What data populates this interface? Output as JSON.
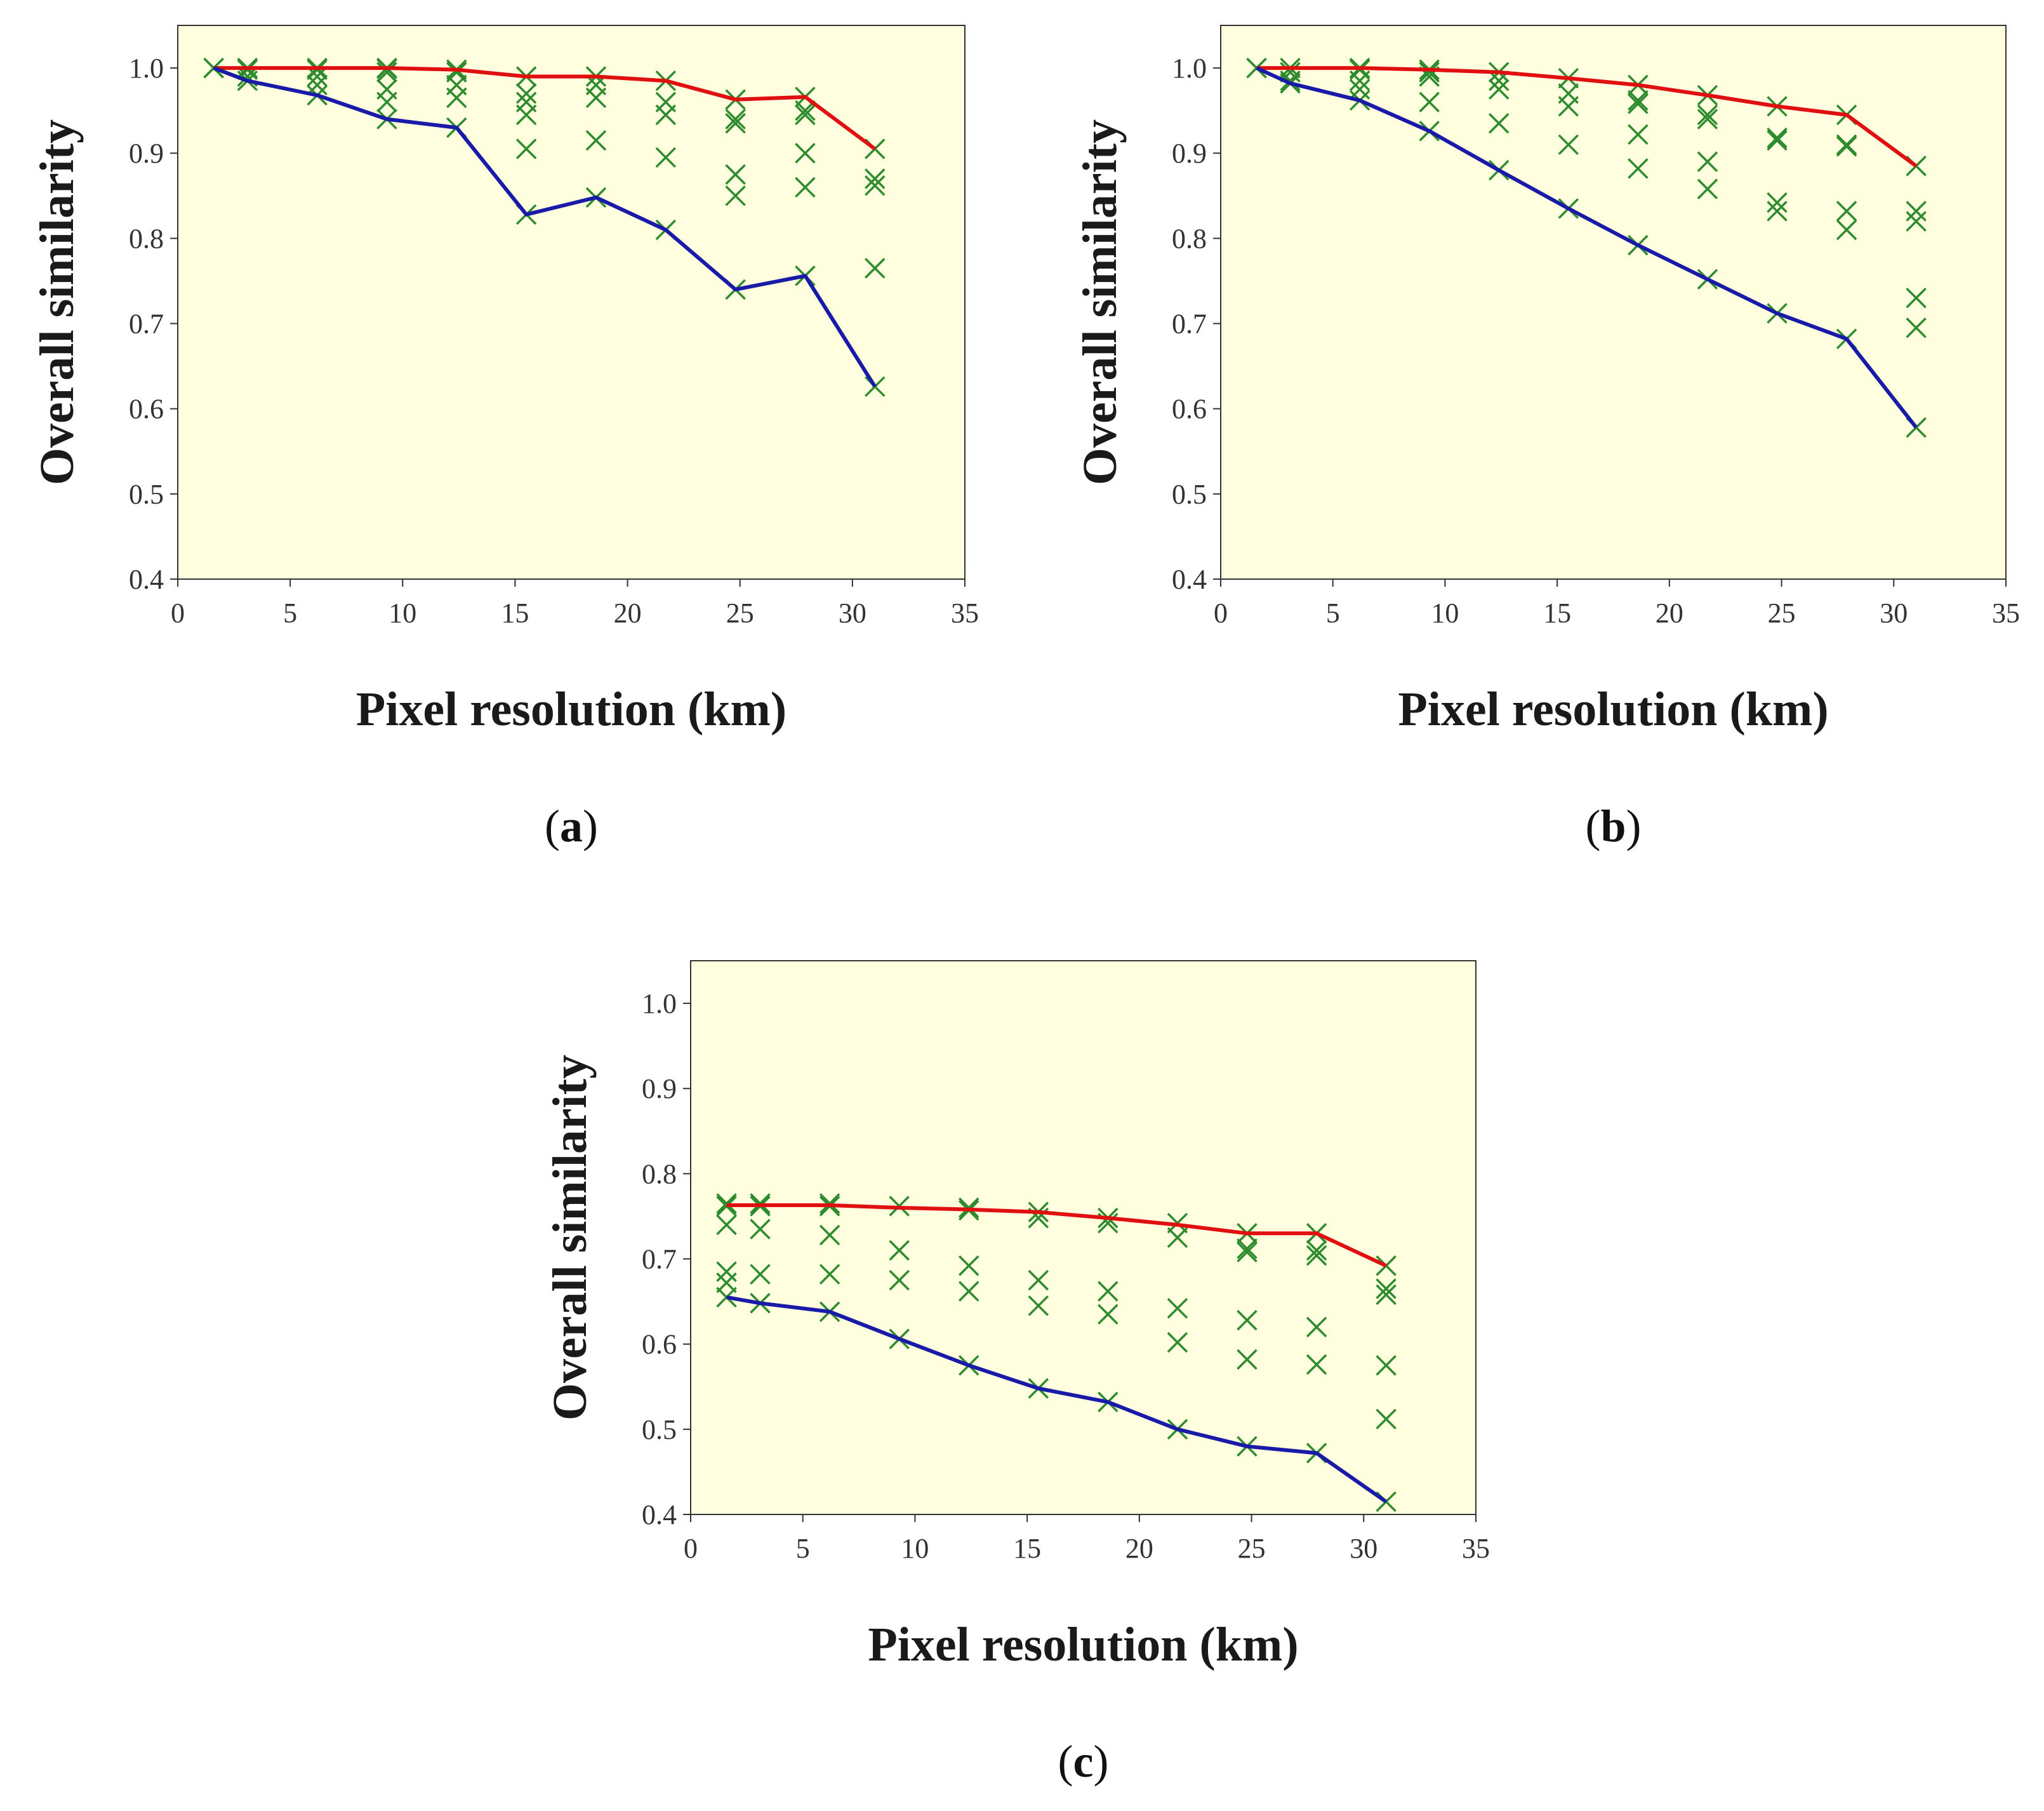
{
  "figure_colors": {
    "plot_background": "#ffffe0",
    "upper_line": "#e01010",
    "lower_line": "#1a1aa8",
    "markers": "#2e8b2e",
    "axis": "#333333"
  },
  "chart_data": [
    {
      "type": "line",
      "panel": "a",
      "panel_label": {
        "open": "(",
        "letter": "a",
        "close": ")"
      },
      "title": "",
      "xlabel": "Pixel resolution (km)",
      "ylabel": "Overall similarity",
      "xlim": [
        0,
        35
      ],
      "ylim": [
        0.4,
        1.05
      ],
      "xticks": [
        0,
        5,
        10,
        15,
        20,
        25,
        30,
        35
      ],
      "yticks": [
        "0.4",
        "0.5",
        "0.6",
        "0.7",
        "0.8",
        "0.9",
        "1.0"
      ],
      "x": [
        1.6,
        3.1,
        6.2,
        9.3,
        12.4,
        15.5,
        18.6,
        21.7,
        24.8,
        27.9,
        31.0
      ],
      "series": [
        {
          "name": "upper envelope",
          "color": "red",
          "values": [
            1.0,
            1.0,
            1.0,
            1.0,
            0.998,
            0.99,
            0.99,
            0.985,
            0.963,
            0.966,
            0.905
          ]
        },
        {
          "name": "lower envelope",
          "color": "blue",
          "values": [
            1.0,
            0.985,
            0.968,
            0.94,
            0.93,
            0.828,
            0.848,
            0.81,
            0.74,
            0.756,
            0.626
          ]
        }
      ],
      "scatter": [
        [
          1.0,
          1.0
        ],
        [
          1.0,
          0.998,
          0.99,
          0.985
        ],
        [
          1.0,
          0.998,
          0.99,
          0.98,
          0.968
        ],
        [
          1.0,
          0.999,
          0.995,
          0.975,
          0.96,
          0.94
        ],
        [
          0.998,
          0.995,
          0.98,
          0.965,
          0.93
        ],
        [
          0.99,
          0.97,
          0.96,
          0.945,
          0.905,
          0.828
        ],
        [
          0.99,
          0.98,
          0.965,
          0.915,
          0.848
        ],
        [
          0.985,
          0.96,
          0.945,
          0.895,
          0.81
        ],
        [
          0.963,
          0.94,
          0.935,
          0.875,
          0.85,
          0.74
        ],
        [
          0.966,
          0.95,
          0.945,
          0.9,
          0.86,
          0.756
        ],
        [
          0.905,
          0.87,
          0.862,
          0.765,
          0.626
        ]
      ]
    },
    {
      "type": "line",
      "panel": "b",
      "panel_label": {
        "open": "(",
        "letter": "b",
        "close": ")"
      },
      "title": "",
      "xlabel": "Pixel resolution (km)",
      "ylabel": "Overall similarity",
      "xlim": [
        0,
        35
      ],
      "ylim": [
        0.4,
        1.05
      ],
      "xticks": [
        0,
        5,
        10,
        15,
        20,
        25,
        30,
        35
      ],
      "yticks": [
        "0.4",
        "0.5",
        "0.6",
        "0.7",
        "0.8",
        "0.9",
        "1.0"
      ],
      "x": [
        1.6,
        3.1,
        6.2,
        9.3,
        12.4,
        15.5,
        18.6,
        21.7,
        24.8,
        27.9,
        31.0
      ],
      "series": [
        {
          "name": "upper envelope",
          "color": "red",
          "values": [
            1.0,
            1.0,
            1.0,
            0.998,
            0.995,
            0.988,
            0.98,
            0.968,
            0.955,
            0.945,
            0.885
          ]
        },
        {
          "name": "lower envelope",
          "color": "blue",
          "values": [
            1.0,
            0.982,
            0.962,
            0.926,
            0.88,
            0.835,
            0.792,
            0.752,
            0.712,
            0.682,
            0.578
          ]
        }
      ],
      "scatter": [
        [
          1.0,
          1.0
        ],
        [
          1.0,
          0.995,
          0.985,
          0.982
        ],
        [
          1.0,
          0.998,
          0.985,
          0.975,
          0.962
        ],
        [
          0.998,
          0.995,
          0.99,
          0.96,
          0.926
        ],
        [
          0.995,
          0.985,
          0.975,
          0.935,
          0.88
        ],
        [
          0.988,
          0.97,
          0.955,
          0.91,
          0.835
        ],
        [
          0.98,
          0.962,
          0.958,
          0.922,
          0.882,
          0.792
        ],
        [
          0.968,
          0.945,
          0.94,
          0.89,
          0.858,
          0.752
        ],
        [
          0.955,
          0.918,
          0.915,
          0.842,
          0.832,
          0.712
        ],
        [
          0.945,
          0.91,
          0.908,
          0.832,
          0.81,
          0.682
        ],
        [
          0.885,
          0.832,
          0.82,
          0.73,
          0.695,
          0.578
        ]
      ]
    },
    {
      "type": "line",
      "panel": "c",
      "panel_label": {
        "open": "(",
        "letter": "c",
        "close": ")"
      },
      "title": "",
      "xlabel": "Pixel resolution (km)",
      "ylabel": "Overall similarity",
      "xlim": [
        0,
        35
      ],
      "ylim": [
        0.4,
        1.05
      ],
      "xticks": [
        0,
        5,
        10,
        15,
        20,
        25,
        30,
        35
      ],
      "yticks": [
        "0.4",
        "0.5",
        "0.6",
        "0.7",
        "0.8",
        "0.9",
        "1.0"
      ],
      "x": [
        1.6,
        3.1,
        6.2,
        9.3,
        12.4,
        15.5,
        18.6,
        21.7,
        24.8,
        27.9,
        31.0
      ],
      "series": [
        {
          "name": "upper envelope",
          "color": "red",
          "values": [
            0.763,
            0.763,
            0.763,
            0.76,
            0.758,
            0.755,
            0.748,
            0.74,
            0.73,
            0.73,
            0.692
          ]
        },
        {
          "name": "lower envelope",
          "color": "blue",
          "values": [
            0.655,
            0.648,
            0.638,
            0.606,
            0.575,
            0.548,
            0.532,
            0.5,
            0.48,
            0.472,
            0.415
          ]
        }
      ],
      "scatter": [
        [
          0.765,
          0.762,
          0.74,
          0.685,
          0.672,
          0.655
        ],
        [
          0.765,
          0.762,
          0.735,
          0.682,
          0.648
        ],
        [
          0.765,
          0.762,
          0.728,
          0.682,
          0.638
        ],
        [
          0.762,
          0.71,
          0.675,
          0.606
        ],
        [
          0.76,
          0.757,
          0.692,
          0.662,
          0.575
        ],
        [
          0.755,
          0.748,
          0.675,
          0.645,
          0.548
        ],
        [
          0.748,
          0.742,
          0.662,
          0.635,
          0.532
        ],
        [
          0.742,
          0.725,
          0.642,
          0.602,
          0.5
        ],
        [
          0.73,
          0.712,
          0.708,
          0.628,
          0.582,
          0.48
        ],
        [
          0.73,
          0.71,
          0.704,
          0.62,
          0.576,
          0.472
        ],
        [
          0.692,
          0.665,
          0.658,
          0.575,
          0.512,
          0.415
        ]
      ]
    }
  ]
}
